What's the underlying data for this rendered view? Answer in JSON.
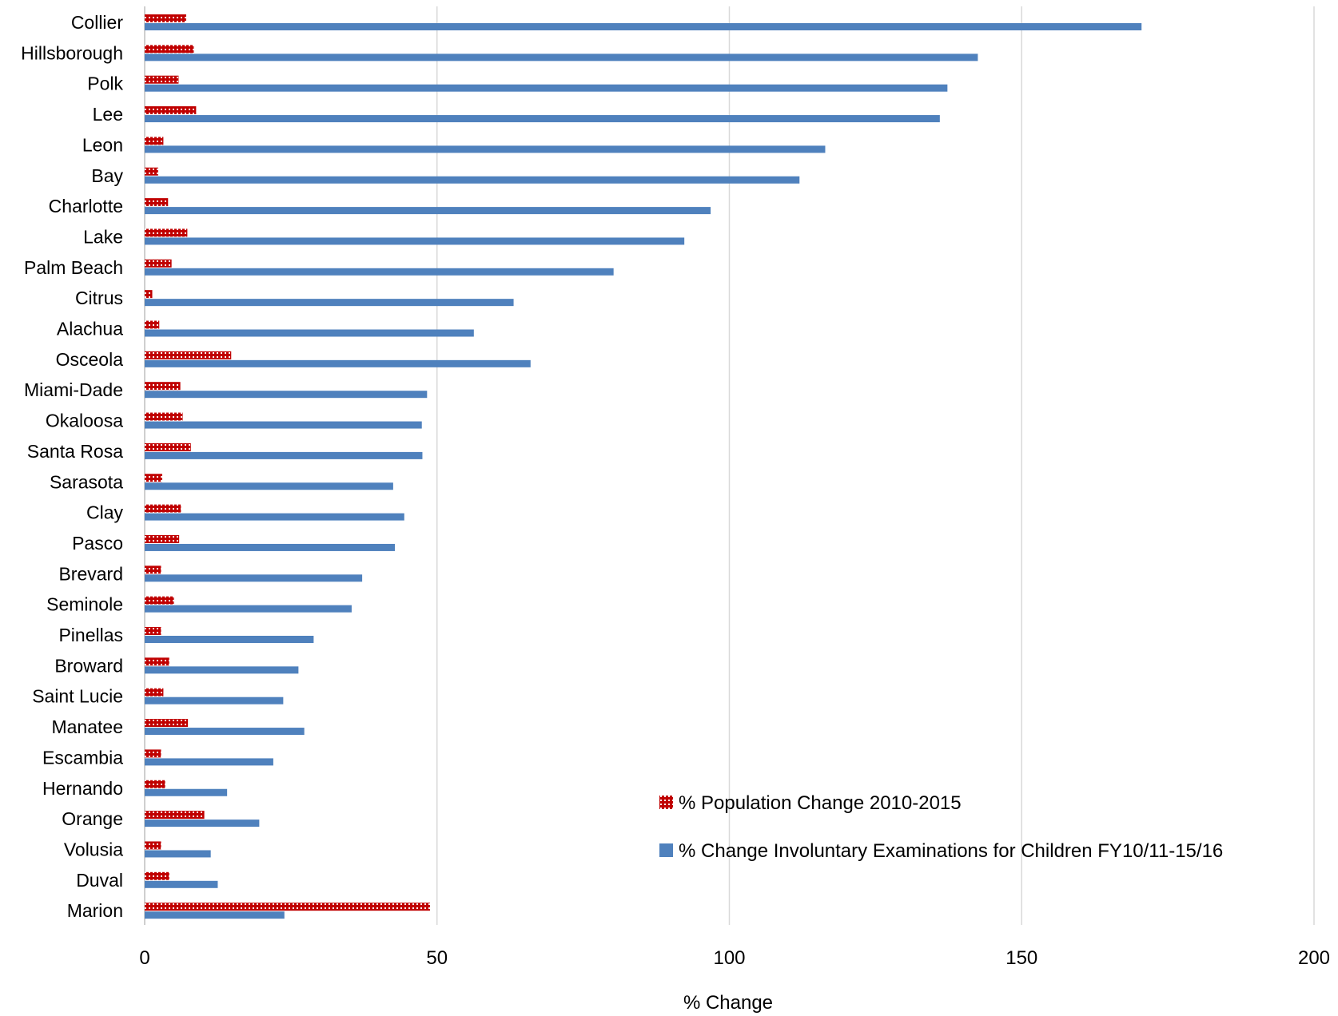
{
  "chart_data": {
    "type": "bar",
    "orientation": "horizontal",
    "categories": [
      "Collier",
      "Hillsborough",
      "Polk",
      "Lee",
      "Leon",
      "Bay",
      "Charlotte",
      "Lake",
      "Palm Beach",
      "Citrus",
      "Alachua",
      "Osceola",
      "Miami-Dade",
      "Okaloosa",
      "Santa Rosa",
      "Sarasota",
      "Clay",
      "Pasco",
      "Brevard",
      "Seminole",
      "Pinellas",
      "Broward",
      "Saint Lucie",
      "Manatee",
      "Escambia",
      "Hernando",
      "Orange",
      "Volusia",
      "Duval",
      "Marion"
    ],
    "series": [
      {
        "name": "% Population Change 2010-2015",
        "color": "#c00000",
        "pattern": "dotted",
        "values": [
          7.1,
          8.4,
          5.8,
          8.8,
          3.2,
          2.3,
          4.0,
          7.3,
          4.6,
          1.3,
          2.5,
          14.8,
          6.1,
          6.5,
          7.9,
          3.0,
          6.2,
          5.9,
          2.8,
          5.0,
          2.8,
          4.2,
          3.2,
          7.4,
          2.8,
          3.5,
          10.2,
          2.8,
          4.2,
          48.8
        ]
      },
      {
        "name": "% Change Involuntary Examinations for Children FY10/11-15/16",
        "color": "#4f81bd",
        "values": [
          170.5,
          142.5,
          137.3,
          136.0,
          116.4,
          112.0,
          96.8,
          92.3,
          80.2,
          63.1,
          56.3,
          66.0,
          48.3,
          47.4,
          47.5,
          42.5,
          44.4,
          42.8,
          37.2,
          35.4,
          28.9,
          26.3,
          23.7,
          27.3,
          22.0,
          14.1,
          19.6,
          11.3,
          12.5,
          23.9
        ]
      }
    ],
    "xlabel": "% Change",
    "xlim": [
      0,
      200
    ],
    "xticks": [
      0,
      50,
      100,
      150,
      200
    ],
    "grid": true,
    "legend_position": "bottom-right"
  }
}
